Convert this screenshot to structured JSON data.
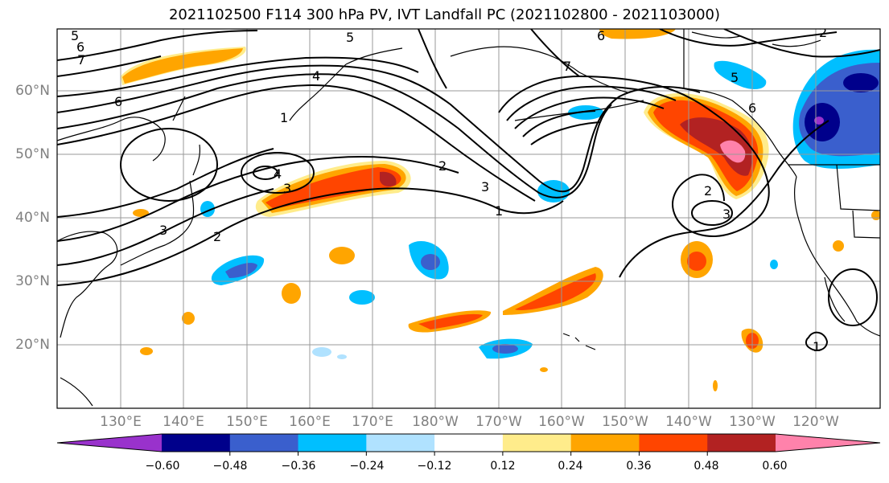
{
  "title": "2021102500 F114 300 hPa PV, IVT Landfall PC (2021102800 - 2021103000)",
  "latitude_labels": [
    "60°N",
    "50°N",
    "40°N",
    "30°N",
    "20°N"
  ],
  "longitude_labels": [
    "130°E",
    "140°E",
    "150°E",
    "160°E",
    "170°E",
    "180°W",
    "170°W",
    "160°W",
    "150°W",
    "140°W",
    "130°W",
    "120°W"
  ],
  "colorbar": {
    "tick_labels": [
      "−0.60",
      "−0.48",
      "−0.36",
      "−0.24",
      "−0.12",
      "0.12",
      "0.24",
      "0.36",
      "0.48",
      "0.60"
    ],
    "colors": [
      "#9932cc",
      "#00008b",
      "#3a5fcd",
      "#00bfff",
      "#b0e2ff",
      "#ffffff",
      "#ffec8b",
      "#ffa500",
      "#ff4500",
      "#b22222",
      "#ff82ab"
    ]
  },
  "contour_labels": [
    "5",
    "5",
    "6",
    "7",
    "6",
    "4",
    "1",
    "4",
    "3",
    "2",
    "3",
    "2",
    "2",
    "3",
    "1",
    "7",
    "6",
    "5",
    "6",
    "2",
    "3",
    "1"
  ],
  "colors": {
    "grid": "#999999",
    "coast": "#000000",
    "contour": "#000000"
  }
}
